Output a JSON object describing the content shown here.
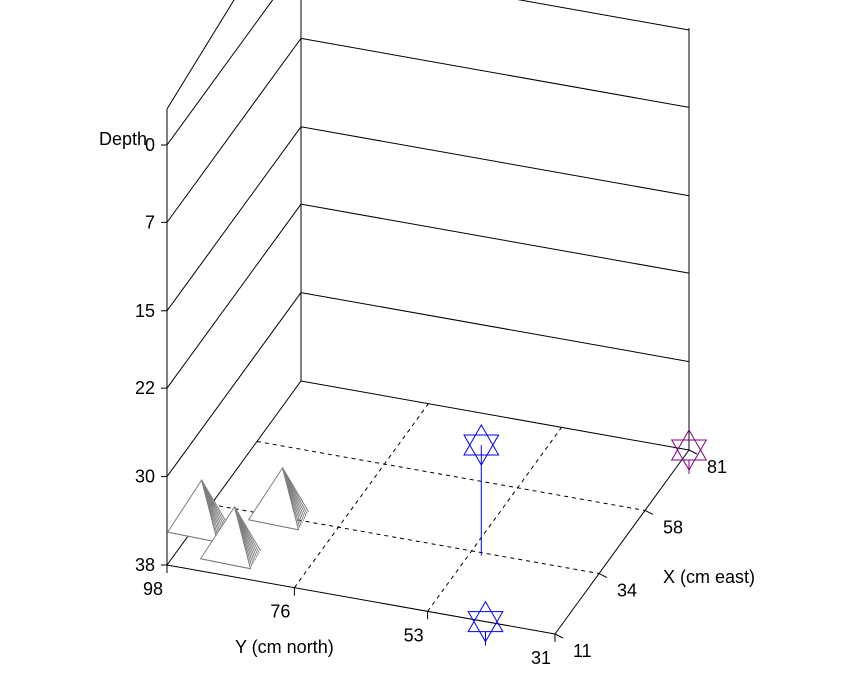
{
  "chart_data": {
    "type": "scatter",
    "projection": "3d",
    "title": "",
    "axes": {
      "depth": {
        "label": "Depth",
        "ticks": [
          0,
          7,
          15,
          22,
          30,
          38
        ],
        "range": [
          0,
          38
        ],
        "direction": "down"
      },
      "y": {
        "label": "Y (cm north)",
        "ticks": [
          98,
          76,
          53,
          31
        ],
        "range": [
          31,
          98
        ]
      },
      "x": {
        "label": "X (cm east)",
        "ticks": [
          11,
          34,
          58,
          81
        ],
        "range": [
          11,
          81
        ]
      }
    },
    "floor_grid": "dashed",
    "series": [
      {
        "marker": "pyramid",
        "color": "#7f7f7f",
        "points": [
          {
            "x": 22,
            "y": 96,
            "depth": 38
          },
          {
            "x": 15,
            "y": 88,
            "depth": 38
          },
          {
            "x": 31,
            "y": 85,
            "depth": 38
          }
        ]
      },
      {
        "marker": "star",
        "color": "#0000ff",
        "points": [
          {
            "x": 11,
            "y": 43,
            "depth": 38
          },
          {
            "x": 33,
            "y": 51,
            "depth": 28
          }
        ]
      },
      {
        "marker": "star",
        "color": "#800080",
        "points": [
          {
            "x": 81,
            "y": 31,
            "depth": 38
          }
        ]
      }
    ]
  }
}
